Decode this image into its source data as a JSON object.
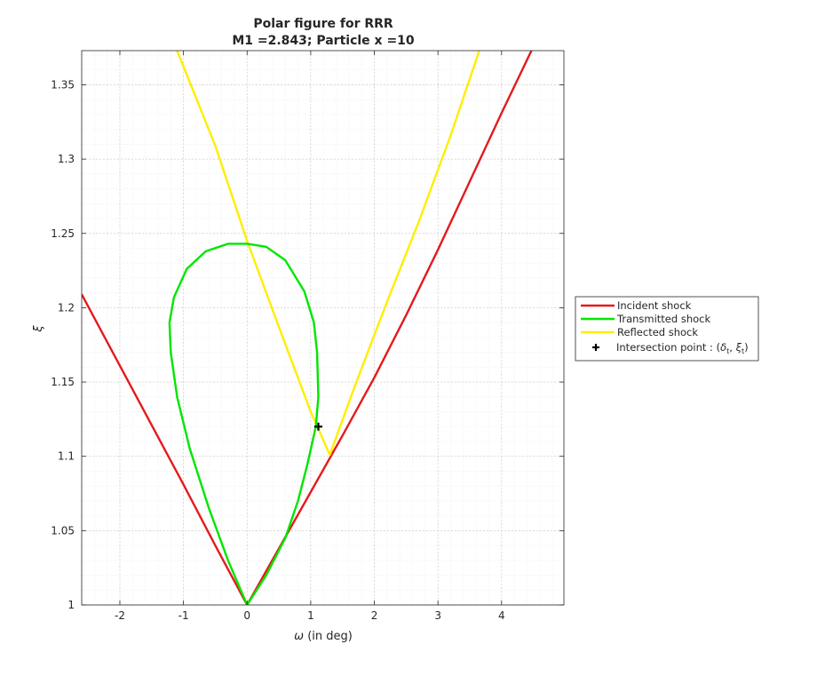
{
  "chart_data": {
    "type": "line",
    "title": "Polar figure for RRR",
    "subtitle": "M1 =2.843; Particle x =10",
    "xlabel_symbol": "ω",
    "xlabel_text": " (in deg)",
    "ylabel": "ξ",
    "xlim": [
      -2.6,
      4.98
    ],
    "ylim": [
      1.0,
      1.373
    ],
    "xticks": [
      -2,
      -1,
      0,
      1,
      2,
      3,
      4
    ],
    "xtick_labels": [
      "-2",
      "-1",
      "0",
      "1",
      "2",
      "3",
      "4"
    ],
    "yticks": [
      1.0,
      1.05,
      1.1,
      1.15,
      1.2,
      1.25,
      1.3,
      1.35
    ],
    "ytick_labels": [
      "1",
      "1.05",
      "1.1",
      "1.15",
      "1.2",
      "1.25",
      "1.3",
      "1.35"
    ],
    "grid": true,
    "minor_grid": true,
    "legend_position": "right",
    "series": [
      {
        "name": "Incident shock",
        "color": "#e41a1c",
        "x": [
          -2.6,
          -2.0,
          -1.5,
          -1.0,
          -0.5,
          0.0,
          0.5,
          1.0,
          1.5,
          2.0,
          2.5,
          3.0,
          3.5,
          4.0,
          4.47
        ],
        "y": [
          1.209,
          1.161,
          1.121,
          1.081,
          1.04,
          1.0,
          1.038,
          1.076,
          1.114,
          1.153,
          1.195,
          1.239,
          1.285,
          1.331,
          1.373
        ]
      },
      {
        "name": "Transmitted shock",
        "color": "#00e600",
        "x": [
          0.0,
          -0.3,
          -0.6,
          -0.9,
          -1.1,
          -1.2,
          -1.22,
          -1.15,
          -0.95,
          -0.65,
          -0.3,
          0.0,
          0.3,
          0.6,
          0.9,
          1.05,
          1.1,
          1.12,
          1.08,
          0.95,
          0.8,
          0.6,
          0.3,
          0.0
        ],
        "y": [
          1.0,
          1.03,
          1.065,
          1.105,
          1.14,
          1.17,
          1.19,
          1.207,
          1.226,
          1.238,
          1.243,
          1.243,
          1.241,
          1.232,
          1.211,
          1.19,
          1.17,
          1.14,
          1.12,
          1.095,
          1.07,
          1.045,
          1.02,
          1.0
        ]
      },
      {
        "name": "Reflected shock",
        "color": "#ffee00",
        "x": [
          -1.1,
          -0.5,
          0.0,
          0.5,
          1.0,
          1.3,
          1.7,
          2.2,
          2.7,
          3.2,
          3.65
        ],
        "y": [
          1.373,
          1.309,
          1.245,
          1.187,
          1.13,
          1.101,
          1.148,
          1.204,
          1.258,
          1.316,
          1.373
        ]
      }
    ],
    "intersection_point": {
      "name_prefix": "Intersection point : (",
      "delta_symbol": "δ",
      "xi_symbol": "ξ",
      "subscript": "t",
      "separator": ", ",
      "suffix": ")",
      "x": 1.12,
      "y": 1.12
    }
  }
}
